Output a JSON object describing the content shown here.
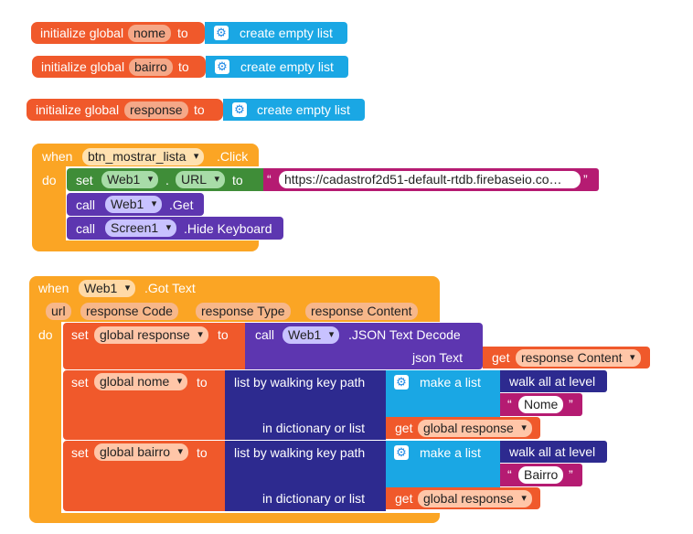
{
  "globals": [
    {
      "prefix": "initialize global",
      "name": "nome",
      "to": "to",
      "value": "create empty list"
    },
    {
      "prefix": "initialize global",
      "name": "bairro",
      "to": "to",
      "value": "create empty list"
    },
    {
      "prefix": "initialize global",
      "name": "response",
      "to": "to",
      "value": "create empty list"
    }
  ],
  "event1": {
    "when": "when",
    "component": "btn_mostrar_lista",
    "event": ".Click",
    "do": "do",
    "set1": {
      "set": "set",
      "component": "Web1",
      "dot": ".",
      "property": "URL",
      "to": "to",
      "string_value": "https://cadastrof2d51-default-rtdb.firebaseio.co…",
      "quote_open": "“",
      "quote_close": "”"
    },
    "call1": {
      "call": "call",
      "component": "Web1",
      "method": ".Get"
    },
    "call2": {
      "call": "call",
      "component": "Screen1",
      "method": ".Hide Keyboard"
    }
  },
  "event2": {
    "when": "when",
    "component": "Web1",
    "event": ".Got Text",
    "params": [
      "url",
      "response Code",
      "response Type",
      "response Content"
    ],
    "do": "do",
    "set_response": {
      "set": "set",
      "var": "global response",
      "to": "to",
      "call": "call",
      "component": "Web1",
      "method": ".JSON Text Decode",
      "arg_label": "json Text",
      "get": "get",
      "get_var": "response Content"
    },
    "set_nome": {
      "set": "set",
      "var": "global nome",
      "to": "to",
      "walk": "list by walking key path",
      "make_list": "make a list",
      "walk_all": "walk all at level",
      "key": "Nome",
      "in_dict": "in dictionary or list",
      "get": "get",
      "get_var": "global response"
    },
    "set_bairro": {
      "set": "set",
      "var": "global bairro",
      "to": "to",
      "walk": "list by walking key path",
      "make_list": "make a list",
      "walk_all": "walk all at level",
      "key": "Bairro",
      "in_dict": "in dictionary or list",
      "get": "get",
      "get_var": "global response"
    }
  },
  "colors": {
    "variable": "#f0592b",
    "list": "#1aa7e4",
    "event": "#fba524",
    "component": "#69417a",
    "method": "#5d36b0",
    "setter": "#3f8d38",
    "string": "#b51b72",
    "dictionary": "#2d2a8f"
  },
  "icons": [
    "gear-icon"
  ]
}
